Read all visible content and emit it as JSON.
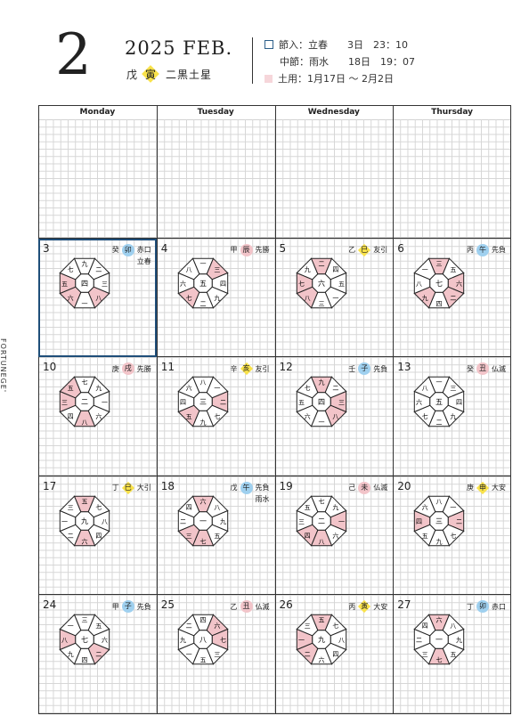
{
  "header": {
    "month_number": "2",
    "year_month": "2025 FEB.",
    "kanshi_stem": "戊",
    "kanshi_branch": "寅",
    "kyusei": "二黒土星",
    "sekki1": "節入：立春　　3日　23：10",
    "sekki2": "中節：雨水　　18日　19：07",
    "doyo": "土用：1月17日 〜 2月2日"
  },
  "side_brand": "FORTUNEGE'",
  "colors": {
    "accent": "#1f4e79",
    "pink": "#f2c4c9",
    "yellow": "#f9e24a",
    "blue": "#9fd0ef"
  },
  "weekdays": [
    "Monday",
    "Tuesday",
    "Wednesday",
    "Thursday"
  ],
  "weeks": [
    [
      {
        "day": "",
        "kan": "",
        "eto": "",
        "rokuyo": "",
        "note": ""
      },
      {
        "day": "",
        "kan": "",
        "eto": "",
        "rokuyo": "",
        "note": ""
      },
      {
        "day": "",
        "kan": "",
        "eto": "",
        "rokuyo": "",
        "note": ""
      },
      {
        "day": "",
        "kan": "",
        "eto": "",
        "rokuyo": "",
        "note": ""
      }
    ],
    [
      {
        "day": "3",
        "kan": "癸",
        "eto": "卯",
        "style": "blue",
        "rokuyo": "赤口",
        "note": "立春",
        "center": "四",
        "ring": [
          "九",
          "二",
          "三",
          "八",
          "一",
          "六",
          "五",
          "七"
        ],
        "pink": [
          3,
          5,
          6
        ]
      },
      {
        "day": "4",
        "kan": "甲",
        "eto": "辰",
        "style": "pink",
        "rokuyo": "先勝",
        "note": "",
        "center": "五",
        "ring": [
          "一",
          "三",
          "四",
          "九",
          "二",
          "七",
          "六",
          "八"
        ],
        "pink": [
          1,
          5
        ]
      },
      {
        "day": "5",
        "kan": "乙",
        "eto": "巳",
        "style": "dia",
        "rokuyo": "友引",
        "note": "",
        "center": "六",
        "ring": [
          "二",
          "四",
          "五",
          "一",
          "三",
          "八",
          "七",
          "九"
        ],
        "pink": [
          0,
          5,
          6
        ]
      },
      {
        "day": "6",
        "kan": "丙",
        "eto": "午",
        "style": "blue",
        "rokuyo": "先負",
        "note": "",
        "center": "七",
        "ring": [
          "三",
          "五",
          "六",
          "二",
          "四",
          "九",
          "八",
          "一"
        ],
        "pink": [
          0,
          2,
          3,
          5
        ]
      }
    ],
    [
      {
        "day": "10",
        "kan": "庚",
        "eto": "戌",
        "style": "pink",
        "rokuyo": "先勝",
        "note": "",
        "center": "二",
        "ring": [
          "七",
          "九",
          "一",
          "六",
          "八",
          "四",
          "三",
          "五"
        ],
        "pink": [
          4,
          6,
          7
        ]
      },
      {
        "day": "11",
        "kan": "辛",
        "eto": "亥",
        "style": "dia",
        "rokuyo": "友引",
        "note": "",
        "center": "三",
        "ring": [
          "八",
          "一",
          "二",
          "七",
          "九",
          "五",
          "四",
          "六"
        ],
        "pink": [
          2,
          5
        ]
      },
      {
        "day": "12",
        "kan": "壬",
        "eto": "子",
        "style": "blue",
        "rokuyo": "先負",
        "note": "",
        "center": "四",
        "ring": [
          "九",
          "二",
          "三",
          "八",
          "一",
          "六",
          "五",
          "七"
        ],
        "pink": [
          0,
          2,
          3
        ]
      },
      {
        "day": "13",
        "kan": "癸",
        "eto": "丑",
        "style": "pink",
        "rokuyo": "仏滅",
        "note": "",
        "center": "五",
        "ring": [
          "一",
          "三",
          "四",
          "九",
          "二",
          "七",
          "六",
          "八"
        ],
        "pink": []
      }
    ],
    [
      {
        "day": "17",
        "kan": "丁",
        "eto": "巳",
        "style": "dia",
        "rokuyo": "大引",
        "note": "",
        "center": "九",
        "ring": [
          "五",
          "七",
          "八",
          "四",
          "六",
          "二",
          "一",
          "三"
        ],
        "pink": [
          0,
          4
        ]
      },
      {
        "day": "18",
        "kan": "戊",
        "eto": "午",
        "style": "blue",
        "rokuyo": "先負",
        "note": "雨水",
        "center": "一",
        "ring": [
          "六",
          "八",
          "九",
          "五",
          "七",
          "三",
          "二",
          "四"
        ],
        "pink": [
          0,
          4,
          5
        ]
      },
      {
        "day": "19",
        "kan": "己",
        "eto": "未",
        "style": "pink",
        "rokuyo": "仏滅",
        "note": "",
        "center": "二",
        "ring": [
          "七",
          "九",
          "一",
          "六",
          "八",
          "四",
          "三",
          "五"
        ],
        "pink": [
          2,
          4,
          5
        ]
      },
      {
        "day": "20",
        "kan": "庚",
        "eto": "申",
        "style": "dia",
        "rokuyo": "大安",
        "note": "",
        "center": "三",
        "ring": [
          "八",
          "一",
          "二",
          "七",
          "九",
          "五",
          "四",
          "六"
        ],
        "pink": [
          2,
          6
        ]
      }
    ],
    [
      {
        "day": "24",
        "kan": "甲",
        "eto": "子",
        "style": "blue",
        "rokuyo": "先負",
        "note": "",
        "center": "七",
        "ring": [
          "三",
          "五",
          "六",
          "二",
          "四",
          "九",
          "八",
          "一"
        ],
        "pink": [
          3,
          6
        ]
      },
      {
        "day": "25",
        "kan": "乙",
        "eto": "丑",
        "style": "pink",
        "rokuyo": "仏滅",
        "note": "",
        "center": "八",
        "ring": [
          "四",
          "六",
          "七",
          "三",
          "五",
          "一",
          "九",
          "二"
        ],
        "pink": [
          1,
          2
        ]
      },
      {
        "day": "26",
        "kan": "丙",
        "eto": "寅",
        "style": "dia",
        "rokuyo": "大安",
        "note": "",
        "center": "九",
        "ring": [
          "五",
          "七",
          "八",
          "四",
          "六",
          "二",
          "一",
          "三"
        ],
        "pink": [
          0,
          5,
          6
        ]
      },
      {
        "day": "27",
        "kan": "丁",
        "eto": "卯",
        "style": "blue",
        "rokuyo": "赤口",
        "note": "",
        "center": "一",
        "ring": [
          "六",
          "八",
          "九",
          "五",
          "七",
          "三",
          "二",
          "四"
        ],
        "pink": [
          0,
          4
        ]
      }
    ]
  ]
}
